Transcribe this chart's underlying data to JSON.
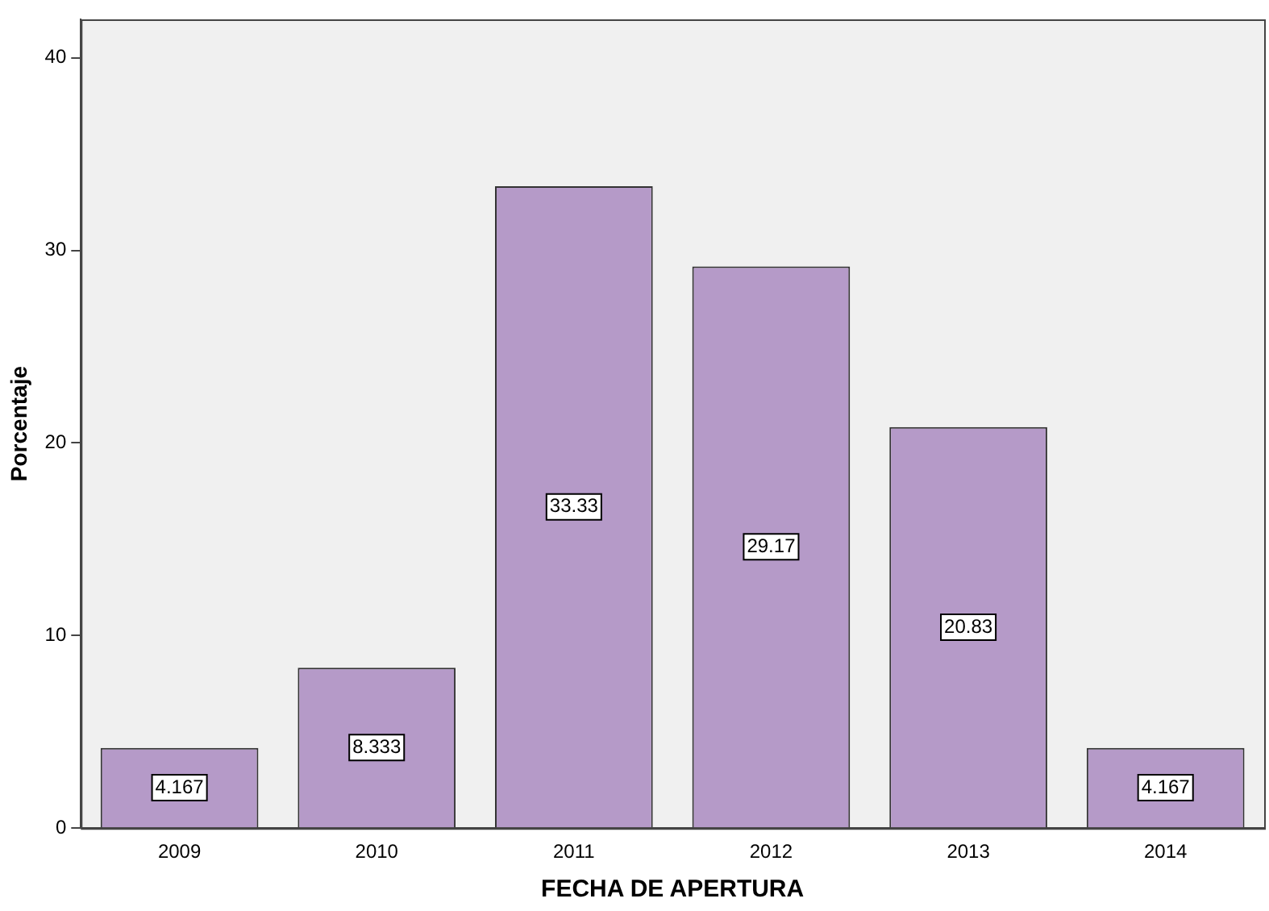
{
  "chart_data": {
    "type": "bar",
    "xlabel": "FECHA DE APERTURA",
    "ylabel": "Porcentaje",
    "categories": [
      "2009",
      "2010",
      "2011",
      "2012",
      "2013",
      "2014"
    ],
    "values": [
      4.167,
      8.333,
      33.33,
      29.17,
      20.83,
      4.167
    ],
    "color": "#b59ac8",
    "ylim": [
      0,
      42
    ],
    "yticks": [
      0,
      10,
      20,
      30,
      40
    ],
    "grid": false,
    "legend": false,
    "data_labels": true
  }
}
